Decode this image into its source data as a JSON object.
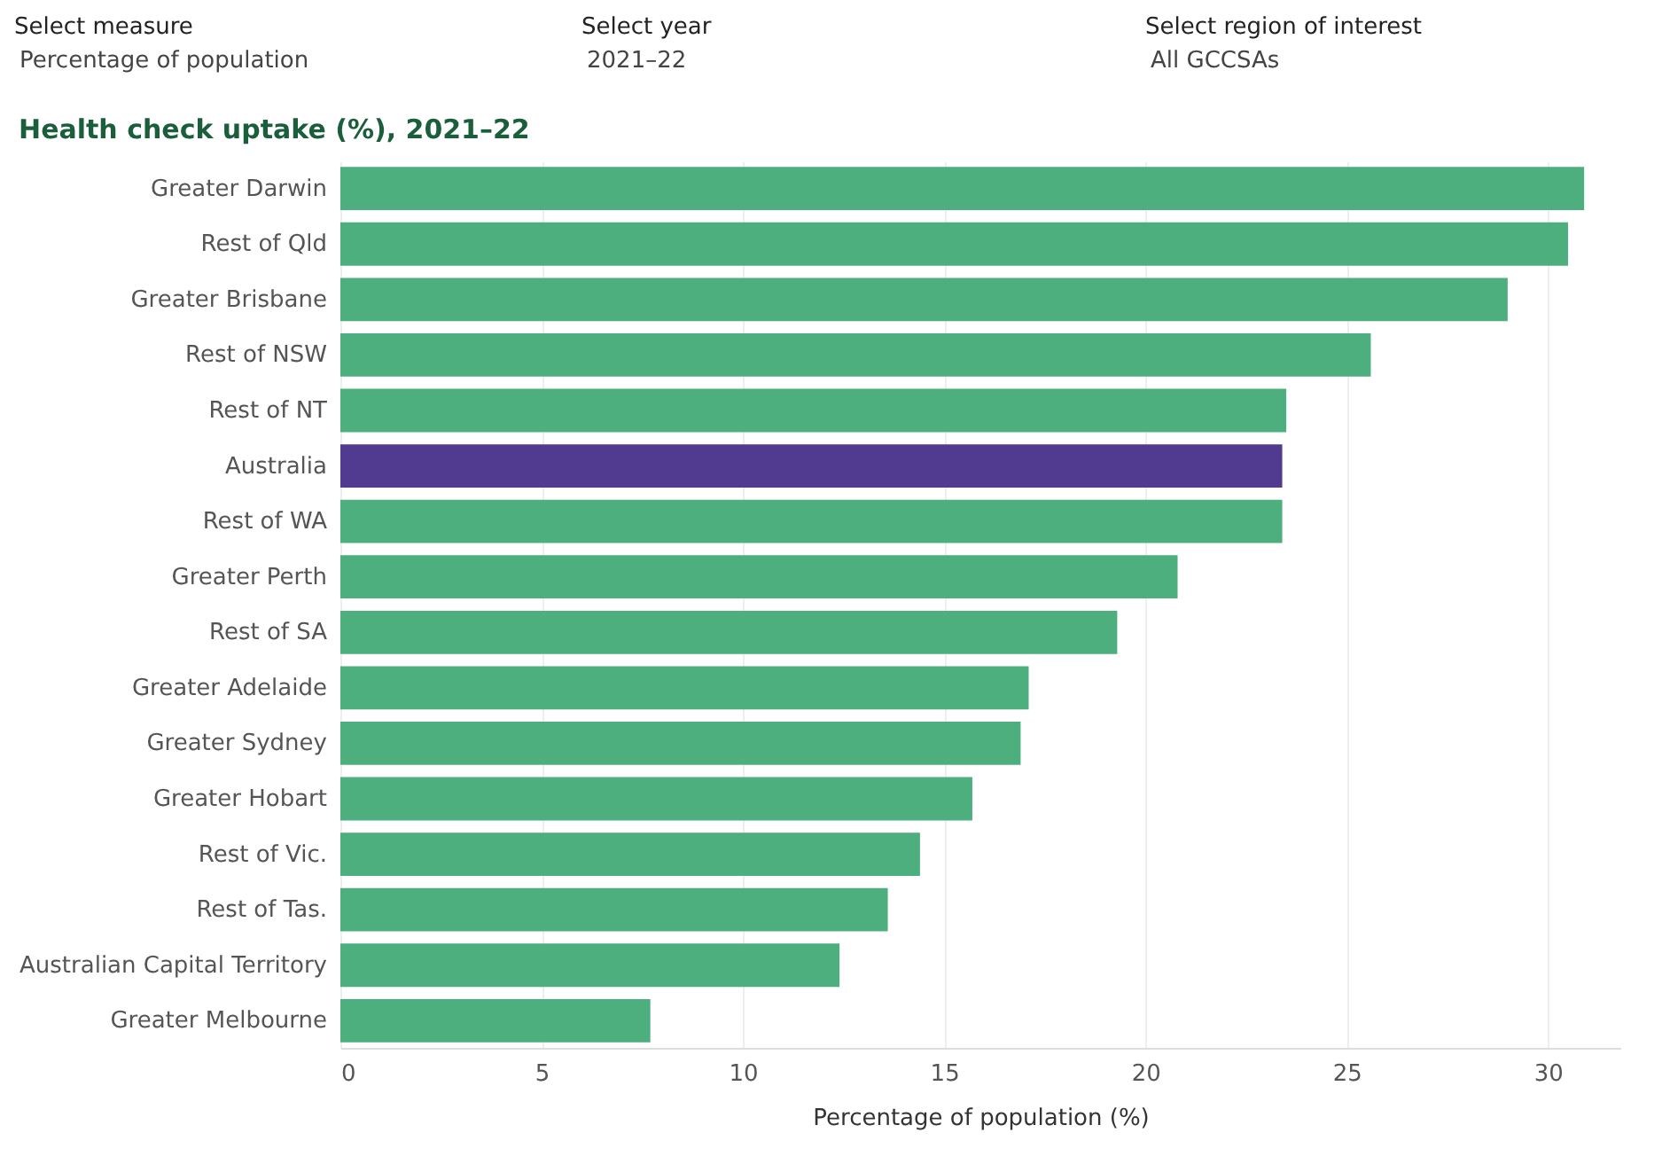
{
  "chart_data": {
    "type": "bar",
    "orientation": "horizontal",
    "title": "Health check uptake (%), 2021–22",
    "xlabel": "Percentage of population (%)",
    "annotations": [
      "Select measure",
      "Percentage of population",
      "Select year",
      "2021–22",
      "Select region of interest",
      "All GCCSAs"
    ],
    "categories": [
      "Greater Darwin",
      "Rest of Qld",
      "Greater Brisbane",
      "Rest of NSW",
      "Rest of NT",
      "Australia",
      "Rest of WA",
      "Greater Perth",
      "Rest of SA",
      "Greater Adelaide",
      "Greater Sydney",
      "Greater Hobart",
      "Rest of Vic.",
      "Rest of Tas.",
      "Australian Capital Territory",
      "Greater Melbourne"
    ],
    "values": [
      30.9,
      30.5,
      29.0,
      25.6,
      23.5,
      23.4,
      23.4,
      20.8,
      19.3,
      17.1,
      16.9,
      15.7,
      14.4,
      13.6,
      12.4,
      7.7
    ],
    "colors": [
      "#4caf7d",
      "#4caf7d",
      "#4caf7d",
      "#4caf7d",
      "#4caf7d",
      "#513b91",
      "#4caf7d",
      "#4caf7d",
      "#4caf7d",
      "#4caf7d",
      "#4caf7d",
      "#4caf7d",
      "#4caf7d",
      "#4caf7d",
      "#4caf7d",
      "#4caf7d"
    ],
    "xlim": [
      0,
      31.8
    ],
    "xticks": [
      0,
      5,
      10,
      15,
      20,
      25,
      30
    ],
    "grid": "x"
  }
}
